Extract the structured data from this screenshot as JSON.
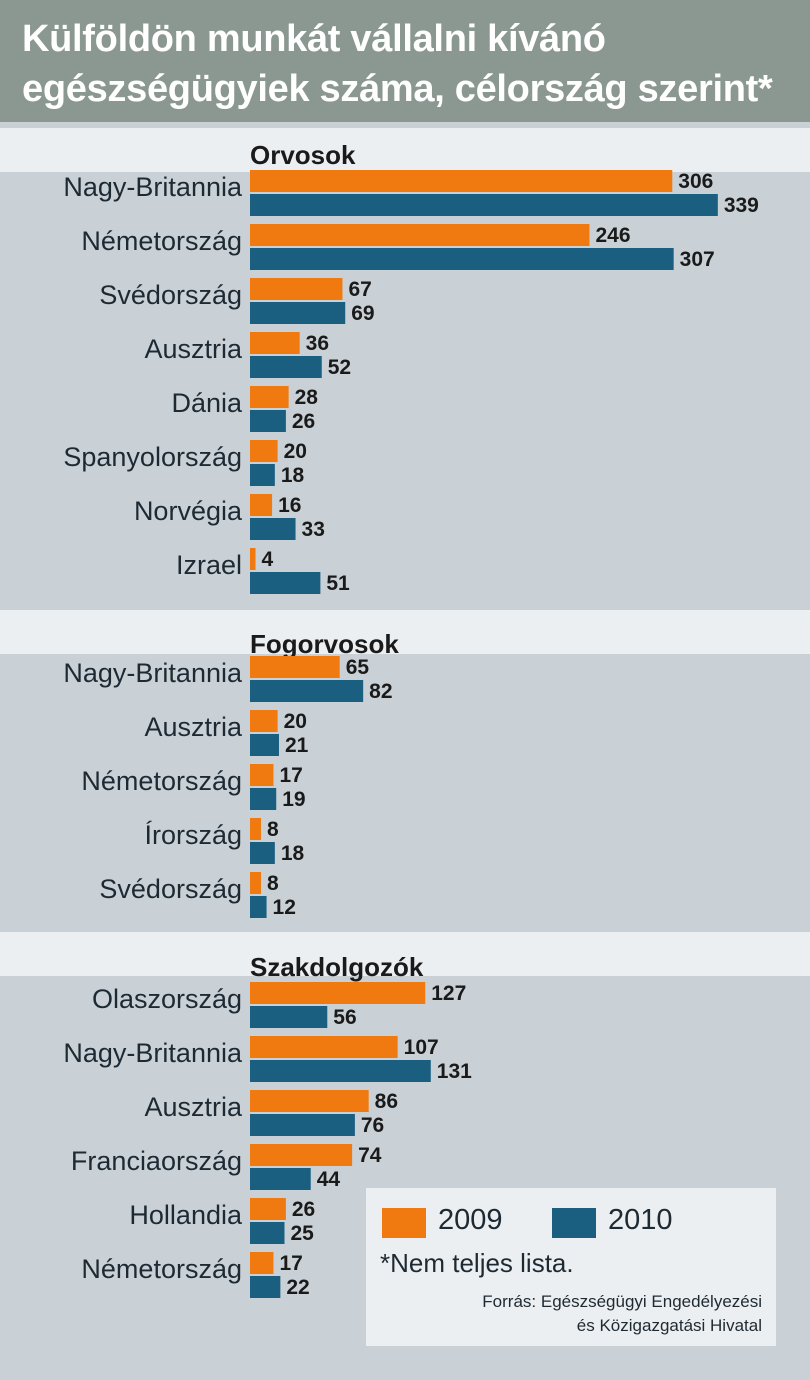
{
  "title": {
    "line1": "Külföldön munkát vállalni kívánó",
    "line2": "egészségügyiek száma, célország szerint*"
  },
  "colors": {
    "series_2009": "#f07a10",
    "series_2010": "#1a5e80",
    "title_background": "#8b9892"
  },
  "legend": {
    "items": [
      {
        "label": "2009",
        "color": "#f07a10"
      },
      {
        "label": "2010",
        "color": "#1a5e80"
      }
    ],
    "footnote": "*Nem teljes lista.",
    "source_line1": "Forrás: Egészségügyi Engedélyezési",
    "source_line2": "és Közigazgatási Hivatal"
  },
  "chart_data": [
    {
      "type": "bar",
      "orientation": "horizontal",
      "title": "Orvosok",
      "categories": [
        "Nagy-Britannia",
        "Németország",
        "Svédország",
        "Ausztria",
        "Dánia",
        "Spanyolország",
        "Norvégia",
        "Izrael"
      ],
      "series": [
        {
          "name": "2009",
          "values": [
            306,
            246,
            67,
            36,
            28,
            20,
            16,
            4
          ]
        },
        {
          "name": "2010",
          "values": [
            339,
            307,
            69,
            52,
            26,
            18,
            33,
            51
          ]
        }
      ]
    },
    {
      "type": "bar",
      "orientation": "horizontal",
      "title": "Fogorvosok",
      "categories": [
        "Nagy-Britannia",
        "Ausztria",
        "Németország",
        "Írország",
        "Svédország"
      ],
      "series": [
        {
          "name": "2009",
          "values": [
            65,
            20,
            17,
            8,
            8
          ]
        },
        {
          "name": "2010",
          "values": [
            82,
            21,
            19,
            18,
            12
          ]
        }
      ]
    },
    {
      "type": "bar",
      "orientation": "horizontal",
      "title": "Szakdolgozók",
      "categories": [
        "Olaszország",
        "Nagy-Britannia",
        "Ausztria",
        "Franciaország",
        "Hollandia",
        "Németország"
      ],
      "series": [
        {
          "name": "2009",
          "values": [
            127,
            107,
            86,
            74,
            26,
            17
          ]
        },
        {
          "name": "2010",
          "values": [
            56,
            131,
            76,
            44,
            25,
            22
          ]
        }
      ]
    }
  ]
}
